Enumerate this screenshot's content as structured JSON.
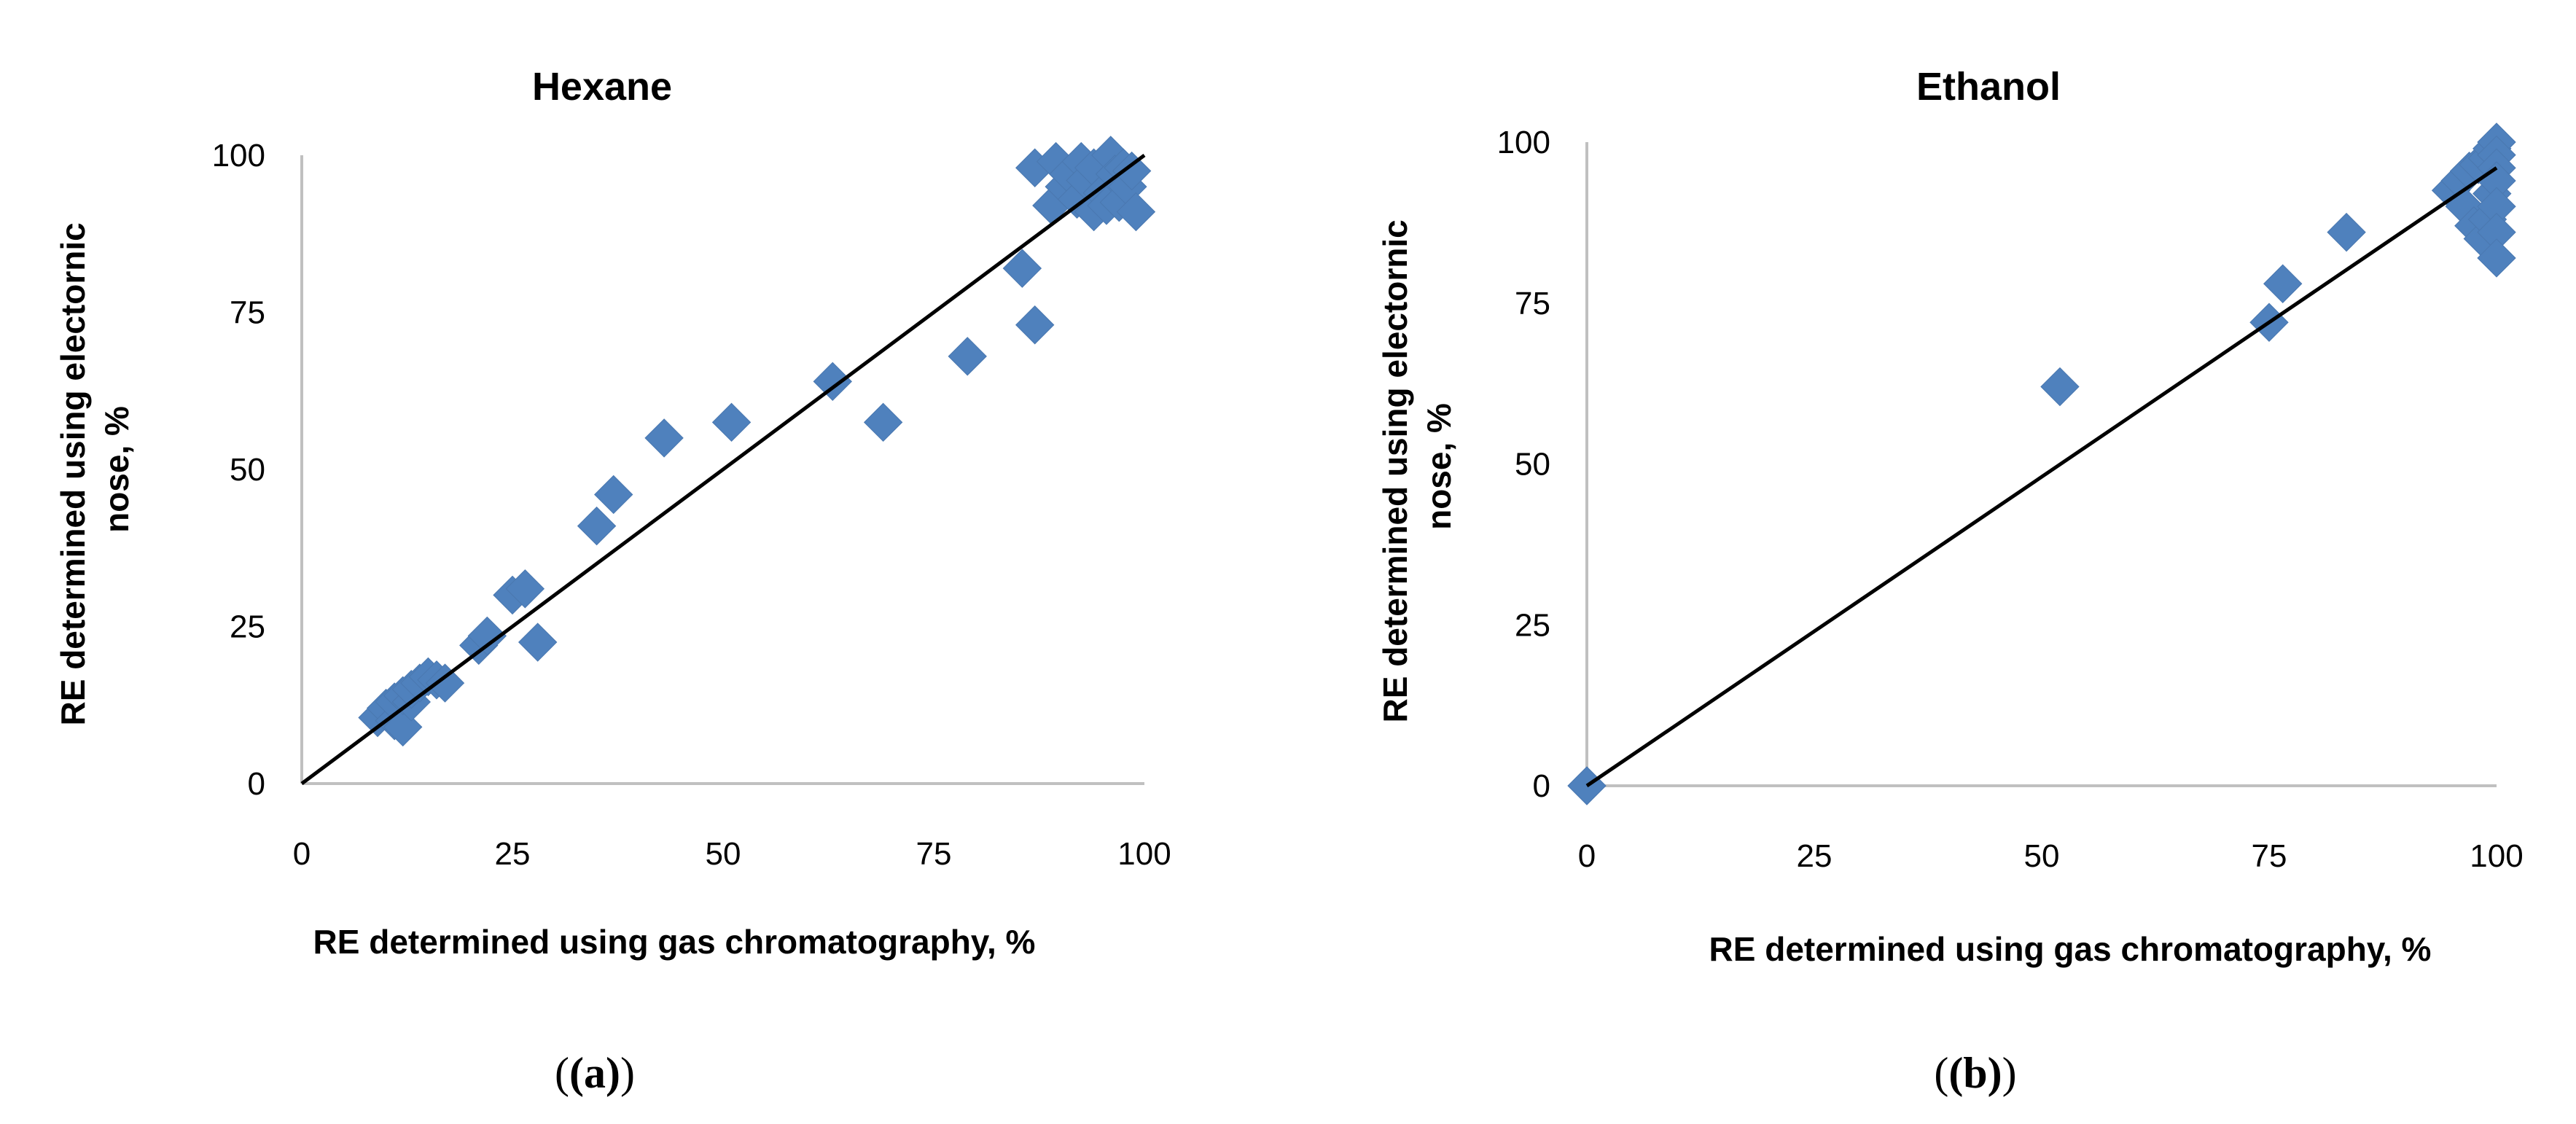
{
  "chart_data": [
    {
      "type": "scatter",
      "panel": "(a)",
      "title": "Hexane",
      "xlabel": "RE determined using gas chromatography, %",
      "ylabel_lines": [
        "RE determined using electornic",
        "nose, %"
      ],
      "xlim": [
        0,
        100
      ],
      "ylim": [
        0,
        100
      ],
      "xticks": [
        0,
        25,
        50,
        75,
        100
      ],
      "yticks": [
        0,
        25,
        50,
        75,
        100
      ],
      "marker": "diamond",
      "marker_color": "#4f81bd",
      "line": {
        "x": [
          0,
          100
        ],
        "y": [
          0,
          100
        ],
        "color": "#000000"
      },
      "points": [
        [
          9,
          10.5
        ],
        [
          10,
          12
        ],
        [
          11,
          10
        ],
        [
          11,
          13
        ],
        [
          12,
          9
        ],
        [
          12,
          14
        ],
        [
          13,
          13
        ],
        [
          13,
          15
        ],
        [
          14,
          16
        ],
        [
          15,
          17
        ],
        [
          16,
          16.5
        ],
        [
          17,
          16
        ],
        [
          21,
          22
        ],
        [
          22,
          23.5
        ],
        [
          25,
          30
        ],
        [
          26.5,
          31
        ],
        [
          28,
          22.5
        ],
        [
          35,
          41
        ],
        [
          37,
          46
        ],
        [
          43,
          55
        ],
        [
          51,
          57.5
        ],
        [
          63,
          64
        ],
        [
          69,
          57.5
        ],
        [
          79,
          68
        ],
        [
          85.5,
          82
        ],
        [
          87,
          73
        ],
        [
          87,
          98
        ],
        [
          89,
          92
        ],
        [
          89.5,
          99
        ],
        [
          90.5,
          95
        ],
        [
          91,
          97
        ],
        [
          92,
          93
        ],
        [
          92.5,
          99
        ],
        [
          93,
          96
        ],
        [
          94,
          91
        ],
        [
          94,
          98
        ],
        [
          95,
          94
        ],
        [
          95.5,
          92
        ],
        [
          96,
          100
        ],
        [
          96.5,
          97
        ],
        [
          97,
          92.5
        ],
        [
          97.5,
          98
        ],
        [
          98,
          95
        ],
        [
          98.5,
          97.5
        ],
        [
          99,
          91
        ]
      ]
    },
    {
      "type": "scatter",
      "panel": "(b)",
      "title": "Ethanol",
      "xlabel": "RE determined using gas chromatography, %",
      "ylabel_lines": [
        "RE determined using electornic",
        "nose, %"
      ],
      "xlim": [
        0,
        100
      ],
      "ylim": [
        0,
        100
      ],
      "xticks": [
        0,
        25,
        50,
        75,
        100
      ],
      "yticks": [
        0,
        25,
        50,
        75,
        100
      ],
      "marker": "diamond",
      "marker_color": "#4f81bd",
      "line": {
        "x": [
          0,
          100
        ],
        "y": [
          0,
          96
        ],
        "color": "#000000"
      },
      "points": [
        [
          0,
          0
        ],
        [
          52,
          62
        ],
        [
          75,
          72
        ],
        [
          76.5,
          78
        ],
        [
          83.5,
          86
        ],
        [
          95,
          92.5
        ],
        [
          96,
          94
        ],
        [
          96.5,
          90
        ],
        [
          97,
          95.5
        ],
        [
          97.5,
          87
        ],
        [
          98,
          96.5
        ],
        [
          98.5,
          85
        ],
        [
          99,
          97.5
        ],
        [
          99,
          88
        ],
        [
          99.5,
          92
        ],
        [
          99.5,
          99
        ],
        [
          100,
          100
        ],
        [
          100,
          98
        ],
        [
          100,
          96
        ],
        [
          100,
          94
        ],
        [
          100,
          90
        ],
        [
          100,
          86
        ],
        [
          100,
          82
        ]
      ]
    }
  ]
}
